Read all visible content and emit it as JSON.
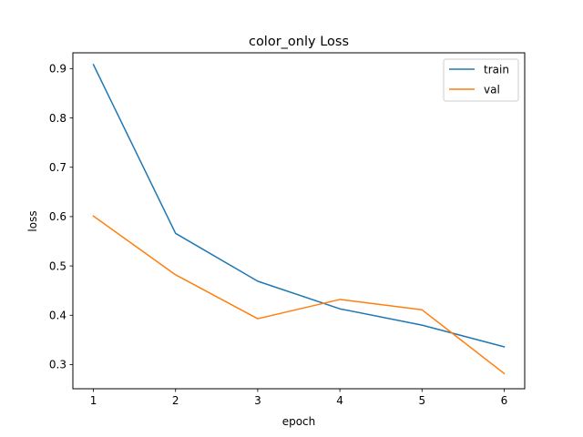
{
  "chart_data": {
    "type": "line",
    "title": "color_only Loss",
    "xlabel": "epoch",
    "ylabel": "loss",
    "x": [
      1,
      2,
      3,
      4,
      5,
      6
    ],
    "xticks": [
      1,
      2,
      3,
      4,
      5,
      6
    ],
    "yticks": [
      0.3,
      0.4,
      0.5,
      0.6,
      0.7,
      0.8,
      0.9
    ],
    "xlim": [
      0.75,
      6.25
    ],
    "ylim": [
      0.251,
      0.932
    ],
    "grid": false,
    "legend_position": "upper right",
    "series": [
      {
        "name": "train",
        "color": "#1f77b4",
        "values": [
          0.908,
          0.566,
          0.469,
          0.413,
          0.38,
          0.336
        ]
      },
      {
        "name": "val",
        "color": "#ff7f0e",
        "values": [
          0.601,
          0.482,
          0.393,
          0.432,
          0.411,
          0.282
        ]
      }
    ]
  }
}
